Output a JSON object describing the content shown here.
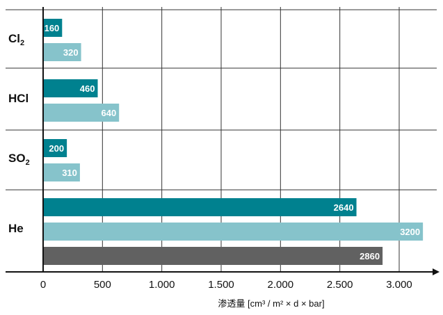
{
  "chart_data": {
    "type": "bar",
    "orientation": "horizontal",
    "categories": [
      {
        "base": "Cl",
        "sub": "2"
      },
      {
        "base": "HCl",
        "sub": ""
      },
      {
        "base": "SO",
        "sub": "2"
      },
      {
        "base": "He",
        "sub": ""
      }
    ],
    "bars": [
      {
        "category": 0,
        "value": 160,
        "label": "160",
        "color": "#00818f"
      },
      {
        "category": 0,
        "value": 320,
        "label": "320",
        "color": "#86c3cb"
      },
      {
        "category": 1,
        "value": 460,
        "label": "460",
        "color": "#00818f"
      },
      {
        "category": 1,
        "value": 640,
        "label": "640",
        "color": "#86c3cb"
      },
      {
        "category": 2,
        "value": 200,
        "label": "200",
        "color": "#00818f"
      },
      {
        "category": 2,
        "value": 310,
        "label": "310",
        "color": "#86c3cb"
      },
      {
        "category": 3,
        "value": 2640,
        "label": "2640",
        "color": "#00818f"
      },
      {
        "category": 3,
        "value": 3200,
        "label": "3200",
        "color": "#86c3cb"
      },
      {
        "category": 3,
        "value": 2860,
        "label": "2860",
        "color": "#616161"
      }
    ],
    "x_ticks": [
      {
        "value": 0,
        "label": "0"
      },
      {
        "value": 500,
        "label": "500"
      },
      {
        "value": 1000,
        "label": "1.000"
      },
      {
        "value": 1500,
        "label": "1.500"
      },
      {
        "value": 2000,
        "label": "2.000"
      },
      {
        "value": 2500,
        "label": "2.500"
      },
      {
        "value": 3000,
        "label": "3.000"
      }
    ],
    "xlim": [
      0,
      3200
    ],
    "xlabel": "渗透量  [cm³ / m² × d × bar]",
    "ylabel": "",
    "title": "",
    "grid": true,
    "legend": "none"
  }
}
